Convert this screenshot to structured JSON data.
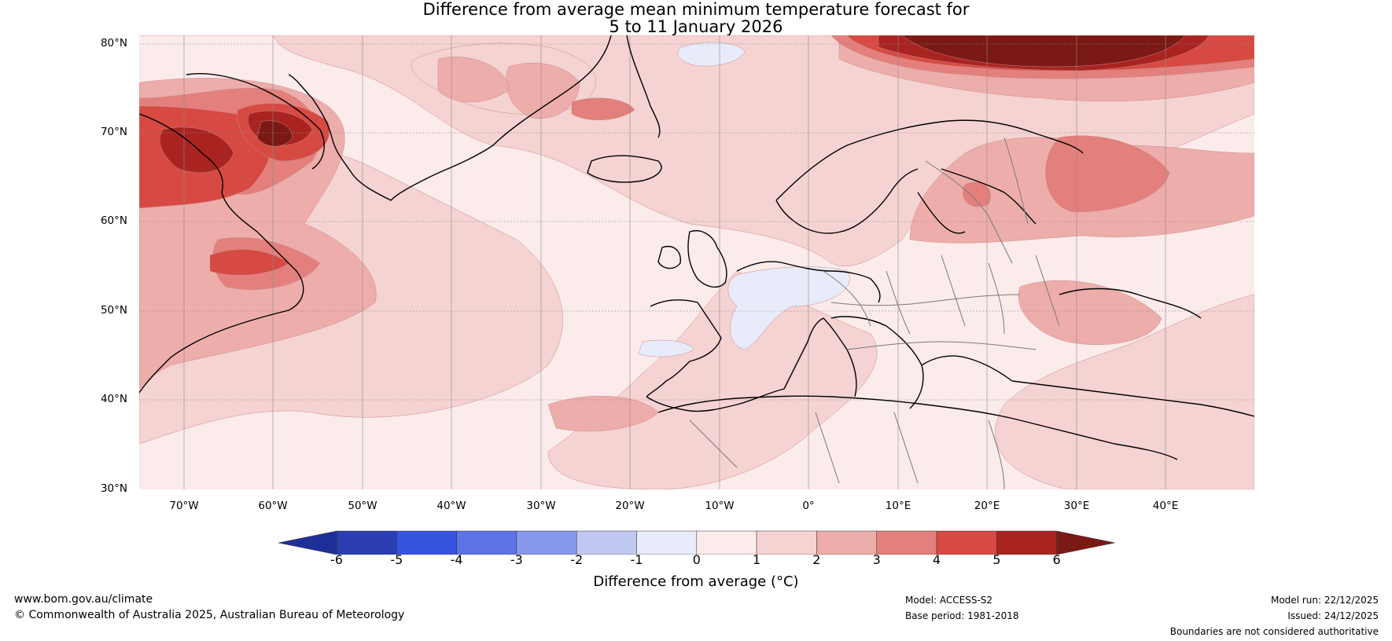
{
  "title": {
    "line1": "Difference from average mean minimum temperature forecast for",
    "line2": "5 to 11 January 2026"
  },
  "map": {
    "lat_labels": [
      "80°N",
      "70°N",
      "60°N",
      "50°N",
      "40°N",
      "30°N"
    ],
    "lon_labels": [
      "70°W",
      "60°W",
      "50°W",
      "40°W",
      "30°W",
      "20°W",
      "10°W",
      "0°",
      "10°E",
      "20°E",
      "30°E",
      "40°E"
    ],
    "colors": {
      "c0_1": "#fbebea",
      "c1_2": "#f5d3d2",
      "c2_3": "#edadab",
      "c3_4": "#e37f7c",
      "c4_5": "#d64a43",
      "c5_6": "#a92421",
      "c6p": "#7b1915",
      "cm1_0": "#e8ecfa"
    }
  },
  "colorbar": {
    "ticks": [
      "-6",
      "-5",
      "-4",
      "-3",
      "-2",
      "-1",
      "0",
      "1",
      "2",
      "3",
      "4",
      "5",
      "6"
    ],
    "colors": [
      "#1f2f99",
      "#2a3eb1",
      "#3653e0",
      "#5d73e6",
      "#8798ec",
      "#c1c9f2",
      "#e8ecfa",
      "#fbebea",
      "#f5d3d2",
      "#edadab",
      "#e37f7c",
      "#d64a43",
      "#a92421",
      "#7b1915"
    ],
    "label": "Difference from average (°C)"
  },
  "footer": {
    "website": "www.bom.gov.au/climate",
    "copyright": "© Commonwealth of Australia 2025, Australian Bureau of Meteorology",
    "model": "Model: ACCESS-S2",
    "base_period": "Base period: 1981-2018",
    "model_run": "Model run: 22/12/2025",
    "issued": "Issued: 24/12/2025",
    "disclaimer": "Boundaries are not considered authoritative"
  }
}
